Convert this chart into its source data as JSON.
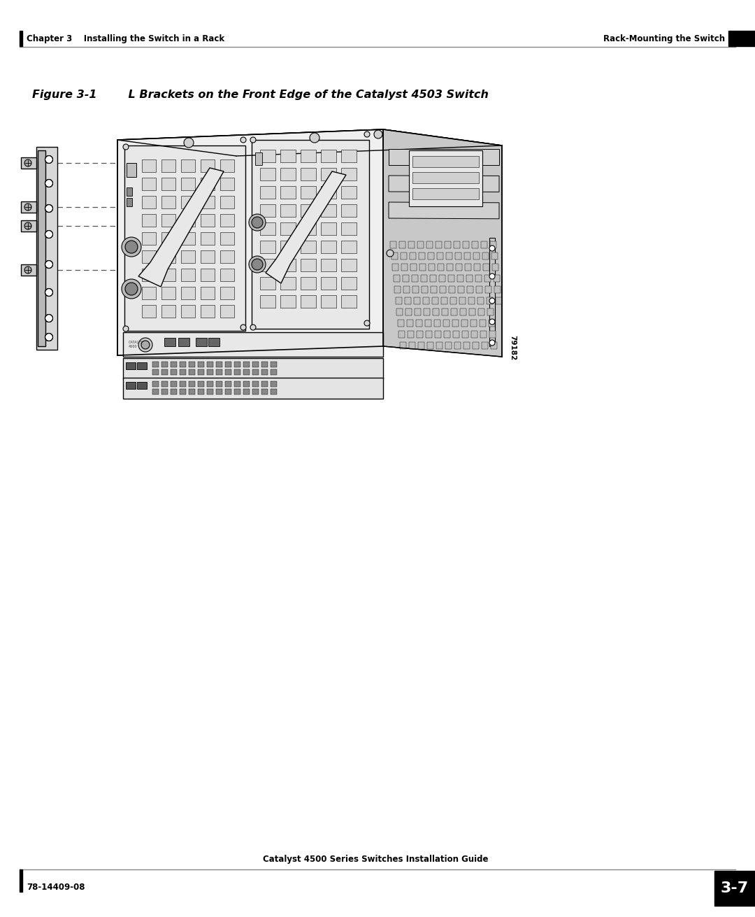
{
  "page_width": 10.8,
  "page_height": 13.11,
  "bg_color": "#ffffff",
  "header_left": "Chapter 3    Installing the Switch in a Rack",
  "header_right": "Rack-Mounting the Switch",
  "figure_caption": "Figure 3-1        L Brackets on the Front Edge of the Catalyst 4503 Switch",
  "footer_left": "78-14409-08",
  "footer_center": "Catalyst 4500 Series Switches Installation Guide",
  "footer_page": "3-7",
  "watermark": "79182",
  "outline": "#000000",
  "fill_white": "#ffffff",
  "fill_light": "#f2f2f2",
  "fill_mid": "#e0e0e0",
  "fill_dark": "#c8c8c8",
  "fill_darker": "#b0b0b0",
  "fill_shadow": "#989898"
}
